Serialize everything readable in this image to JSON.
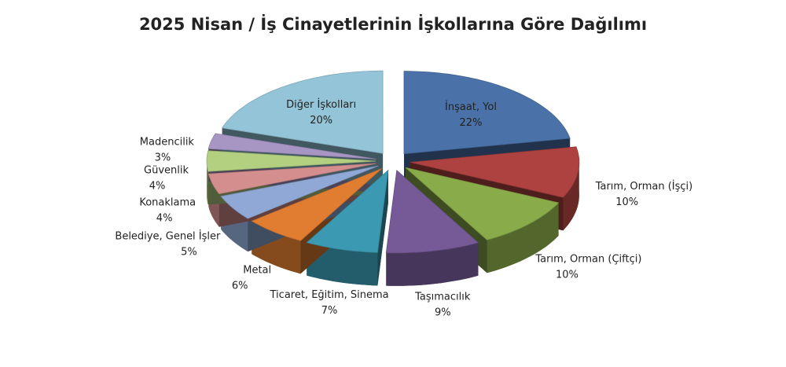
{
  "chart_data": {
    "type": "pie3d",
    "title": "2025 Nisan / İş Cinayetlerinin İşkollarına Göre Dağılımı",
    "categories": [
      "İnşaat, Yol",
      "Tarım, Orman (İşçi)",
      "Tarım, Orman (Çiftçi)",
      "Taşımacılık",
      "Ticaret, Eğitim, Sinema",
      "Metal",
      "Belediye, Genel İşler",
      "Konaklama",
      "Güvenlik",
      "Madencilik",
      "Diğer İşkolları"
    ],
    "values": [
      22,
      10,
      10,
      9,
      7,
      6,
      5,
      4,
      4,
      3,
      20
    ],
    "value_labels": [
      "22%",
      "10%",
      "10%",
      "9%",
      "7%",
      "6%",
      "5%",
      "4%",
      "4%",
      "3%",
      "20%"
    ],
    "colors": [
      "#4a72a8",
      "#ad4240",
      "#8aab4a",
      "#765a98",
      "#3b9ab1",
      "#e07d31",
      "#8fa8d5",
      "#d48e8d",
      "#b3cf80",
      "#a796c3",
      "#93c4d7"
    ]
  }
}
